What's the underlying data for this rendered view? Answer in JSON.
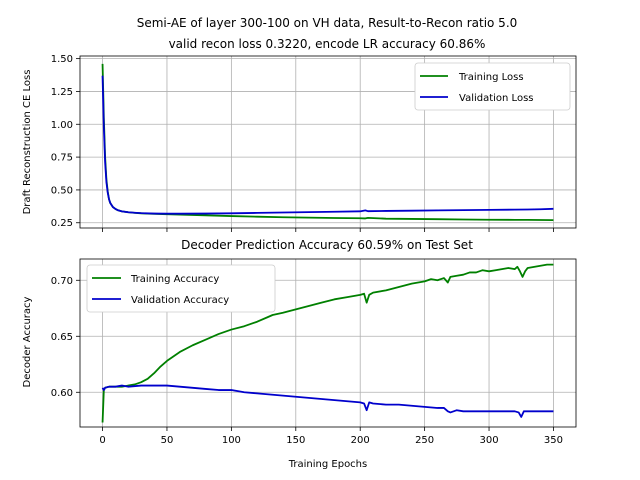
{
  "chart_data": [
    {
      "type": "line",
      "title_line1": "Semi-AE of layer 300-100 on VH data, Result-to-Recon ratio 5.0",
      "title_line2": "valid recon loss 0.3220, encode LR accuracy 60.86%",
      "xlabel": "",
      "ylabel": "Draft Reconstruction CE Loss",
      "xlim": [
        -17.5,
        367.5
      ],
      "ylim": [
        0.21,
        1.52
      ],
      "xticks": [
        0,
        50,
        100,
        150,
        200,
        250,
        300,
        350
      ],
      "show_xtick_labels": false,
      "yticks": [
        0.25,
        0.5,
        0.75,
        1.0,
        1.25,
        1.5
      ],
      "ytick_labels": [
        "0.25",
        "0.50",
        "0.75",
        "1.00",
        "1.25",
        "1.50"
      ],
      "grid": true,
      "legend_position": "top-right",
      "series": [
        {
          "name": "Training Loss",
          "color": "#008000",
          "x": [
            0,
            1,
            2,
            3,
            4,
            5,
            6,
            8,
            10,
            12,
            15,
            20,
            25,
            30,
            40,
            50,
            60,
            80,
            100,
            120,
            140,
            160,
            180,
            200,
            204,
            206,
            220,
            240,
            260,
            280,
            300,
            320,
            330,
            340,
            350
          ],
          "y": [
            1.46,
            1.05,
            0.75,
            0.58,
            0.49,
            0.43,
            0.4,
            0.37,
            0.355,
            0.345,
            0.337,
            0.33,
            0.325,
            0.322,
            0.318,
            0.315,
            0.312,
            0.306,
            0.301,
            0.296,
            0.292,
            0.289,
            0.286,
            0.284,
            0.283,
            0.287,
            0.281,
            0.279,
            0.277,
            0.275,
            0.273,
            0.272,
            0.272,
            0.271,
            0.27
          ]
        },
        {
          "name": "Validation Loss",
          "color": "#0000cc",
          "x": [
            0,
            1,
            2,
            3,
            4,
            5,
            6,
            8,
            10,
            12,
            15,
            20,
            25,
            30,
            40,
            50,
            60,
            80,
            100,
            120,
            140,
            160,
            180,
            200,
            204,
            206,
            220,
            240,
            260,
            280,
            300,
            320,
            330,
            340,
            350
          ],
          "y": [
            1.37,
            0.98,
            0.71,
            0.56,
            0.48,
            0.43,
            0.4,
            0.37,
            0.355,
            0.345,
            0.337,
            0.33,
            0.326,
            0.323,
            0.32,
            0.319,
            0.319,
            0.32,
            0.322,
            0.325,
            0.328,
            0.331,
            0.334,
            0.337,
            0.344,
            0.338,
            0.34,
            0.342,
            0.344,
            0.346,
            0.348,
            0.35,
            0.351,
            0.353,
            0.356
          ]
        }
      ]
    },
    {
      "type": "line",
      "title": "Decoder Prediction Accuracy 60.59% on Test Set",
      "xlabel": "Training Epochs",
      "ylabel": "Decoder Accuracy",
      "xlim": [
        -17.5,
        367.5
      ],
      "ylim": [
        0.569,
        0.719
      ],
      "xticks": [
        0,
        50,
        100,
        150,
        200,
        250,
        300,
        350
      ],
      "xtick_labels": [
        "0",
        "50",
        "100",
        "150",
        "200",
        "250",
        "300",
        "350"
      ],
      "yticks": [
        0.6,
        0.65,
        0.7
      ],
      "ytick_labels": [
        "0.60",
        "0.65",
        "0.70"
      ],
      "grid": true,
      "legend_position": "top-left",
      "series": [
        {
          "name": "Training Accuracy",
          "color": "#008000",
          "x": [
            0,
            1,
            2,
            5,
            10,
            15,
            20,
            25,
            30,
            35,
            40,
            45,
            50,
            60,
            70,
            80,
            90,
            100,
            110,
            120,
            128,
            132,
            140,
            150,
            160,
            170,
            180,
            190,
            200,
            203,
            205,
            207,
            210,
            220,
            230,
            240,
            250,
            255,
            260,
            265,
            268,
            270,
            275,
            280,
            285,
            290,
            295,
            300,
            305,
            310,
            315,
            320,
            322,
            324,
            326,
            328,
            330,
            335,
            340,
            345,
            350
          ],
          "y": [
            0.573,
            0.602,
            0.604,
            0.605,
            0.605,
            0.605,
            0.606,
            0.607,
            0.609,
            0.612,
            0.617,
            0.623,
            0.628,
            0.636,
            0.642,
            0.647,
            0.652,
            0.656,
            0.659,
            0.663,
            0.667,
            0.669,
            0.671,
            0.674,
            0.677,
            0.68,
            0.683,
            0.685,
            0.687,
            0.688,
            0.68,
            0.687,
            0.689,
            0.691,
            0.694,
            0.697,
            0.699,
            0.701,
            0.7,
            0.702,
            0.698,
            0.703,
            0.704,
            0.705,
            0.707,
            0.707,
            0.709,
            0.708,
            0.709,
            0.71,
            0.711,
            0.71,
            0.712,
            0.708,
            0.703,
            0.708,
            0.711,
            0.712,
            0.713,
            0.714,
            0.714
          ]
        },
        {
          "name": "Validation Accuracy",
          "color": "#0000cc",
          "x": [
            0,
            1,
            2,
            5,
            10,
            15,
            20,
            30,
            40,
            50,
            60,
            70,
            80,
            90,
            100,
            110,
            120,
            130,
            140,
            150,
            160,
            170,
            180,
            190,
            200,
            203,
            205,
            207,
            210,
            220,
            230,
            240,
            250,
            260,
            265,
            268,
            270,
            275,
            280,
            290,
            300,
            310,
            320,
            323,
            325,
            327,
            330,
            340,
            350
          ],
          "y": [
            0.604,
            0.602,
            0.604,
            0.605,
            0.605,
            0.606,
            0.605,
            0.606,
            0.606,
            0.606,
            0.605,
            0.604,
            0.603,
            0.602,
            0.602,
            0.6,
            0.599,
            0.598,
            0.597,
            0.596,
            0.595,
            0.594,
            0.593,
            0.592,
            0.591,
            0.59,
            0.584,
            0.591,
            0.59,
            0.589,
            0.589,
            0.588,
            0.587,
            0.586,
            0.586,
            0.583,
            0.582,
            0.584,
            0.583,
            0.583,
            0.583,
            0.583,
            0.583,
            0.582,
            0.578,
            0.583,
            0.583,
            0.583,
            0.583
          ]
        }
      ]
    }
  ]
}
